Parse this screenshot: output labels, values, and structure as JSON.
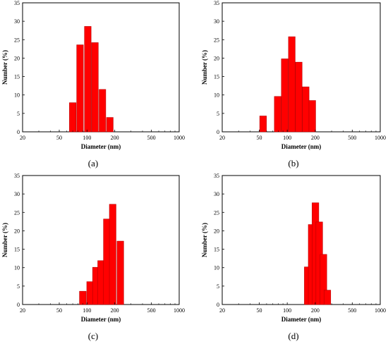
{
  "chart_data": [
    {
      "type": "bar",
      "panel_label": "(a)",
      "xlabel": "Diameter (nm)",
      "ylabel": "Number (%)",
      "xscale": "log",
      "xlim": [
        20,
        1000
      ],
      "ylim": [
        0,
        35
      ],
      "xticks": [
        "20",
        "50",
        "100",
        "200",
        "500",
        "1000"
      ],
      "yticks": [
        "0",
        "5",
        "10",
        "15",
        "20",
        "25",
        "30",
        "35"
      ],
      "bins": [
        {
          "x": 70,
          "value": 7.9
        },
        {
          "x": 84,
          "value": 23.6
        },
        {
          "x": 102,
          "value": 28.6
        },
        {
          "x": 122,
          "value": 24.2
        },
        {
          "x": 147,
          "value": 11.5
        },
        {
          "x": 177,
          "value": 3.9
        }
      ],
      "color": "#ff0000"
    },
    {
      "type": "bar",
      "panel_label": "(b)",
      "xlabel": "Diameter (nm)",
      "ylabel": "Number (%)",
      "xscale": "log",
      "xlim": [
        20,
        1000
      ],
      "ylim": [
        0,
        35
      ],
      "xticks": [
        "20",
        "50",
        "100",
        "200",
        "500",
        "1000"
      ],
      "yticks": [
        "0",
        "5",
        "10",
        "15",
        "20",
        "25",
        "30",
        "35"
      ],
      "bins": [
        {
          "x": 55,
          "value": 4.3
        },
        {
          "x": 79,
          "value": 9.6
        },
        {
          "x": 94,
          "value": 19.8
        },
        {
          "x": 112,
          "value": 25.8
        },
        {
          "x": 133,
          "value": 18.9
        },
        {
          "x": 158,
          "value": 12.2
        },
        {
          "x": 186,
          "value": 8.5
        }
      ],
      "color": "#ff0000"
    },
    {
      "type": "bar",
      "panel_label": "(c)",
      "xlabel": "Diameter (nm)",
      "ylabel": "Number (%)",
      "xscale": "log",
      "xlim": [
        20,
        1000
      ],
      "ylim": [
        0,
        35
      ],
      "xticks": [
        "20",
        "50",
        "100",
        "200",
        "500",
        "1000"
      ],
      "yticks": [
        "0",
        "5",
        "10",
        "15",
        "20",
        "25",
        "30",
        "35"
      ],
      "bins": [
        {
          "x": 90,
          "value": 3.6
        },
        {
          "x": 108,
          "value": 6.2
        },
        {
          "x": 125,
          "value": 10.1
        },
        {
          "x": 142,
          "value": 11.9
        },
        {
          "x": 164,
          "value": 23.2
        },
        {
          "x": 190,
          "value": 27.2
        },
        {
          "x": 230,
          "value": 17.2
        }
      ],
      "color": "#ff0000"
    },
    {
      "type": "bar",
      "panel_label": "(d)",
      "xlabel": "Diameter (nm)",
      "ylabel": "Number (%)",
      "xscale": "log",
      "xlim": [
        20,
        1000
      ],
      "ylim": [
        0,
        35
      ],
      "xticks": [
        "20",
        "50",
        "100",
        "200",
        "500",
        "1000"
      ],
      "yticks": [
        "0",
        "5",
        "10",
        "15",
        "20",
        "25",
        "30",
        "35"
      ],
      "bins": [
        {
          "x": 166,
          "value": 10.2
        },
        {
          "x": 183,
          "value": 21.7
        },
        {
          "x": 201,
          "value": 27.6
        },
        {
          "x": 221,
          "value": 22.4
        },
        {
          "x": 245,
          "value": 13.6
        },
        {
          "x": 270,
          "value": 3.9
        }
      ],
      "color": "#ff0000"
    }
  ]
}
